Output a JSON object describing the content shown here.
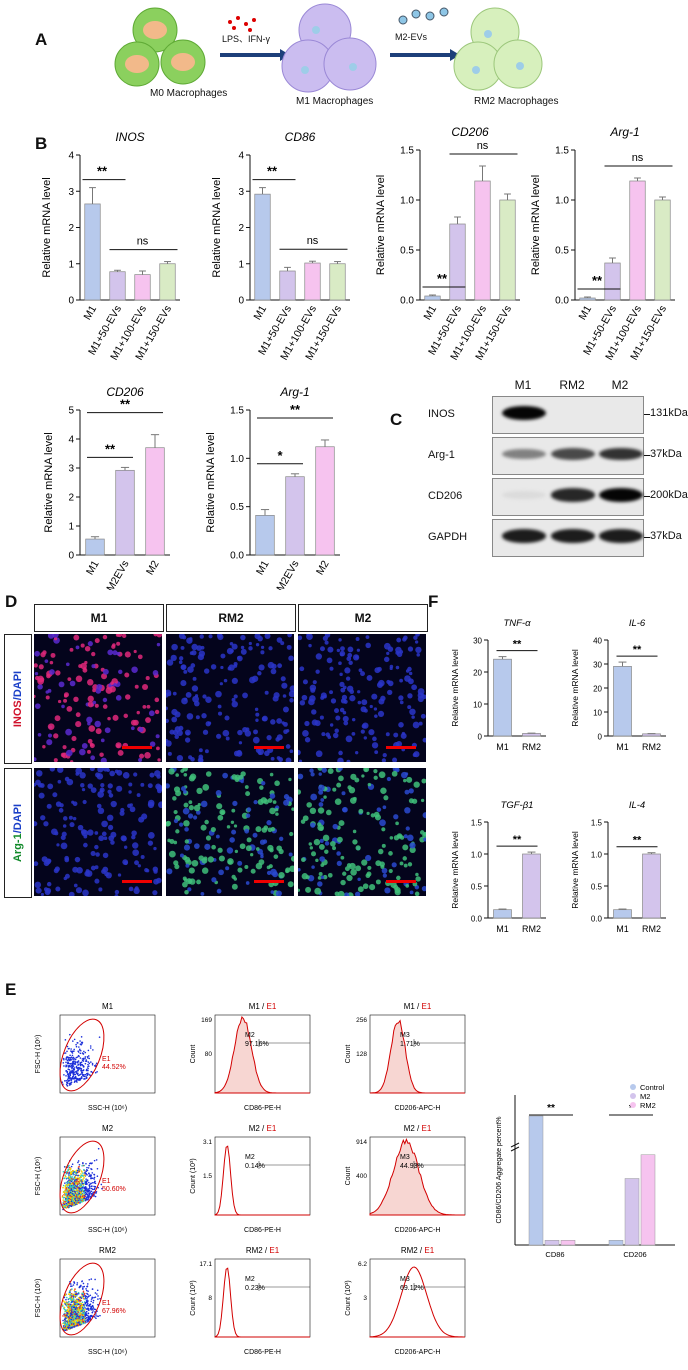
{
  "panelA": {
    "label": "A",
    "m0": "M0 Macrophages",
    "m1": "M1 Macrophages",
    "rm2": "RM2 Macrophages",
    "arrow1": "LPS、IFN-γ",
    "arrow2": "M2-EVs"
  },
  "panelB": {
    "label": "B",
    "ylabel": "Relative mRNA level",
    "categories": [
      "M1",
      "M1+50-EVs",
      "M1+100-EVs",
      "M1+150-EVs"
    ],
    "colors": [
      "#b7c9ec",
      "#d3c4ec",
      "#f6c3ef",
      "#d9ebc5"
    ],
    "charts": [
      {
        "title": "INOS",
        "values": [
          2.65,
          0.78,
          0.7,
          1.0
        ],
        "errors": [
          0.45,
          0.04,
          0.1,
          0.06
        ],
        "ylim": [
          0,
          4
        ],
        "ticks": [
          "0",
          "1",
          "2",
          "3",
          "4"
        ],
        "sig1": "**",
        "sig2": "ns"
      },
      {
        "title": "CD86",
        "values": [
          2.92,
          0.8,
          1.02,
          1.0
        ],
        "errors": [
          0.18,
          0.1,
          0.05,
          0.06
        ],
        "ylim": [
          0,
          4
        ],
        "ticks": [
          "0",
          "1",
          "2",
          "3",
          "4"
        ],
        "sig1": "**",
        "sig2": "ns"
      },
      {
        "title": "CD206",
        "values": [
          0.04,
          0.76,
          1.19,
          1.0
        ],
        "errors": [
          0.01,
          0.07,
          0.15,
          0.06
        ],
        "ylim": [
          0,
          1.5
        ],
        "ticks": [
          "0.0",
          "0.5",
          "1.0",
          "1.5"
        ],
        "sig1": "**",
        "sig2": "ns"
      },
      {
        "title": "Arg-1",
        "values": [
          0.02,
          0.37,
          1.19,
          1.0
        ],
        "errors": [
          0.01,
          0.05,
          0.03,
          0.03
        ],
        "ylim": [
          0,
          1.5
        ],
        "ticks": [
          "0.0",
          "0.5",
          "1.0",
          "1.5"
        ],
        "sig1": "**",
        "sig2": "ns"
      }
    ]
  },
  "panelB2": {
    "categories": [
      "M1",
      "M1+M2EVs",
      "M2"
    ],
    "colors": [
      "#b7c9ec",
      "#d3c4ec",
      "#f6c3ef"
    ],
    "charts": [
      {
        "title": "CD206",
        "values": [
          0.55,
          2.92,
          3.7
        ],
        "errors": [
          0.08,
          0.1,
          0.45
        ],
        "ylim": [
          0,
          5
        ],
        "ticks": [
          "0",
          "1",
          "2",
          "3",
          "4",
          "5"
        ],
        "sig1": "**",
        "sig2": "**"
      },
      {
        "title": "Arg-1",
        "values": [
          0.41,
          0.81,
          1.12
        ],
        "errors": [
          0.06,
          0.03,
          0.07
        ],
        "ylim": [
          0,
          1.5
        ],
        "ticks": [
          "0.0",
          "0.5",
          "1.0",
          "1.5"
        ],
        "sig1": "*",
        "sig2": "**"
      }
    ]
  },
  "panelC": {
    "label": "C",
    "lanes": [
      "M1",
      "RM2",
      "M2"
    ],
    "rows": [
      {
        "name": "INOS",
        "size": "131kDa",
        "bands": [
          1.0,
          0.0,
          0.0
        ]
      },
      {
        "name": "Arg-1",
        "size": "37kDa",
        "bands": [
          0.45,
          0.7,
          0.8
        ]
      },
      {
        "name": "CD206",
        "size": "200kDa",
        "bands": [
          0.05,
          0.85,
          1.0
        ]
      },
      {
        "name": "GAPDH",
        "size": "37kDa",
        "bands": [
          0.9,
          0.9,
          0.9
        ]
      }
    ]
  },
  "panelD": {
    "label": "D",
    "cols": [
      "M1",
      "RM2",
      "M2"
    ],
    "row1_a": "INOS",
    "row1_b": "/DAPI",
    "row2_a": "Arg-1",
    "row2_b": "/DAPI"
  },
  "panelF": {
    "label": "F",
    "ylabel": "Relative mRNA level",
    "categories": [
      "M1",
      "RM2"
    ],
    "colors": [
      "#b7c9ec",
      "#d3c4ec"
    ],
    "charts": [
      {
        "title": "TNF-α",
        "values": [
          24,
          0.8
        ],
        "errors": [
          0.8,
          0.1
        ],
        "ylim": [
          0,
          30
        ],
        "ticks": [
          "0",
          "10",
          "20",
          "30"
        ],
        "sig": "**"
      },
      {
        "title": "IL-6",
        "values": [
          29,
          0.9
        ],
        "errors": [
          1.8,
          0.1
        ],
        "ylim": [
          0,
          40
        ],
        "ticks": [
          "0",
          "10",
          "20",
          "30",
          "40"
        ],
        "sig": "**"
      },
      {
        "title": "TGF-β1",
        "values": [
          0.13,
          1.0
        ],
        "errors": [
          0.01,
          0.03
        ],
        "ylim": [
          0,
          1.5
        ],
        "ticks": [
          "0.0",
          "0.5",
          "1.0",
          "1.5"
        ],
        "sig": "**"
      },
      {
        "title": "IL-4",
        "values": [
          0.13,
          1.0
        ],
        "errors": [
          0.01,
          0.02
        ],
        "ylim": [
          0,
          1.5
        ],
        "ticks": [
          "0.0",
          "0.5",
          "1.0",
          "1.5"
        ],
        "sig": "**"
      }
    ]
  },
  "panelE": {
    "label": "E",
    "rows": [
      {
        "sample": "M1",
        "gate": "E1",
        "gate_pct": "44.52%",
        "cd86_gate": "M2",
        "cd86_pct": "97.16%",
        "cd86_ymax": "169",
        "cd86_ymid": "80",
        "cd86_unit": "Count",
        "cd206_gate": "M3",
        "cd206_pct": "1.71%",
        "cd206_ymax": "256",
        "cd206_ymid": "128",
        "cd206_unit": "Count"
      },
      {
        "sample": "M2",
        "gate": "E1",
        "gate_pct": "50.60%",
        "cd86_gate": "M2",
        "cd86_pct": "0.14%",
        "cd86_ymax": "3.1",
        "cd86_ymid": "1.5",
        "cd86_unit": "Count (10³)",
        "cd206_gate": "M3",
        "cd206_pct": "44.93%",
        "cd206_ymax": "914",
        "cd206_ymid": "400",
        "cd206_unit": "Count"
      },
      {
        "sample": "RM2",
        "gate": "E1",
        "gate_pct": "67.96%",
        "cd86_gate": "M2",
        "cd86_pct": "0.23%",
        "cd86_ymax": "17.1",
        "cd86_ymid": "8",
        "cd86_unit": "Count (10³)",
        "cd206_gate": "M3",
        "cd206_pct": "69.12%",
        "cd206_ymax": "6.2",
        "cd206_ymid": "3",
        "cd206_unit": "Count (10³)"
      }
    ],
    "scatter_x": "SSC-H (10⁶)",
    "scatter_y": "FSC-H (10⁶)",
    "cd86_x": "CD86-PE-H",
    "cd206_x": "CD206-APC-H",
    "gate_suffix": "E1"
  },
  "panelE_bar": {
    "ylabel": "CD86/CD206 Aggregate percent%",
    "groups": [
      "CD86",
      "CD206"
    ],
    "legend": [
      "Control",
      "M2",
      "RM2"
    ],
    "colors": [
      "#b7c9ec",
      "#d3c4ec",
      "#f6c3ef"
    ],
    "values": [
      [
        92,
        3,
        3
      ],
      [
        3,
        42,
        57
      ]
    ],
    "sig": [
      "**",
      "*"
    ]
  }
}
